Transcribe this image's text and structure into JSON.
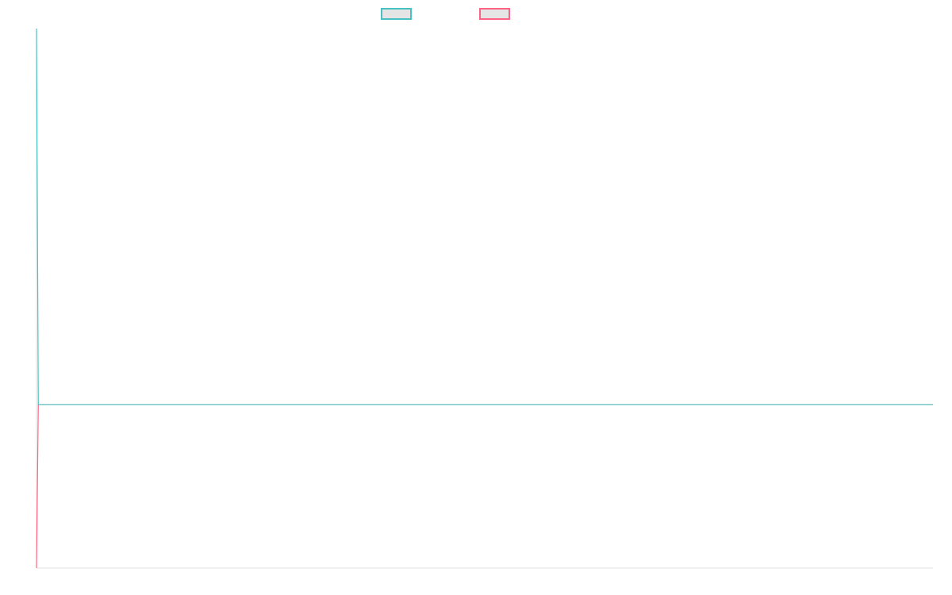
{
  "chart_data": {
    "type": "line",
    "title": "",
    "xlabel": "",
    "ylabel": "",
    "xlim": [
      0,
      100
    ],
    "ylim": [
      0,
      100
    ],
    "grid": false,
    "legend_position": "top",
    "series": [
      {
        "color": "#4bc0c0",
        "x": [
          0,
          0.2,
          100
        ],
        "values": [
          100,
          30.3,
          30.3
        ]
      },
      {
        "color": "#ff6384",
        "x": [
          0,
          0.2,
          100
        ],
        "values": [
          0,
          30.3,
          30.3
        ]
      }
    ]
  }
}
